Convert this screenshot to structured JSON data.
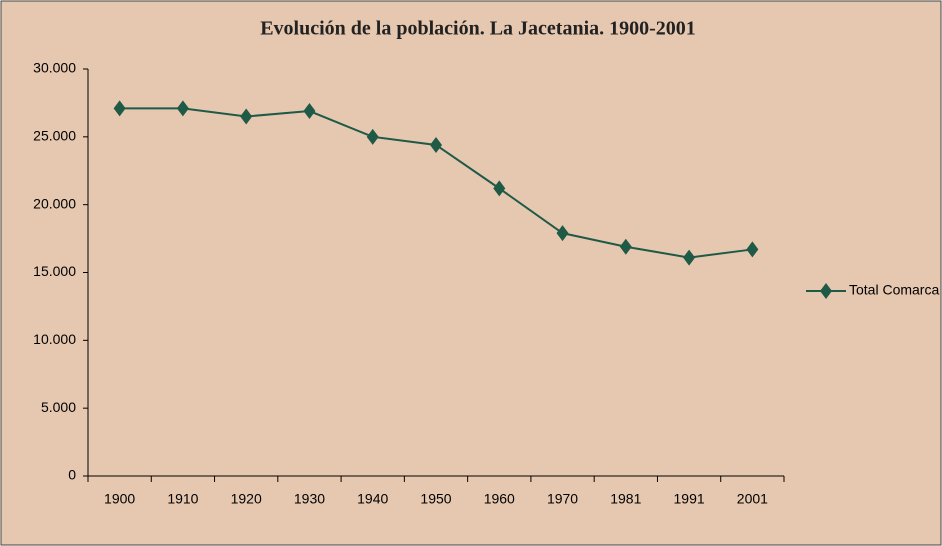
{
  "chart_data": {
    "type": "line",
    "title": "Evolución de la población. La Jacetania. 1900-2001",
    "categories": [
      "1900",
      "1910",
      "1920",
      "1930",
      "1940",
      "1950",
      "1960",
      "1970",
      "1981",
      "1991",
      "2001"
    ],
    "series": [
      {
        "name": "Total Comarca",
        "color": "#1f5a47",
        "marker": "diamond",
        "values": [
          27100,
          27100,
          26500,
          26900,
          25000,
          24400,
          21200,
          17900,
          16900,
          16100,
          16700
        ]
      }
    ],
    "ylim": [
      0,
      30000
    ],
    "yticks": [
      0,
      {
        "value": 5000,
        "label": "5.000"
      },
      {
        "value": 10000,
        "label": "10.000"
      },
      {
        "value": 15000,
        "label": "15.000"
      },
      {
        "value": 20000,
        "label": "20.000"
      },
      {
        "value": 25000,
        "label": "25.000"
      },
      {
        "value": 30000,
        "label": "30.000"
      }
    ],
    "grid": false,
    "legend": "right"
  }
}
